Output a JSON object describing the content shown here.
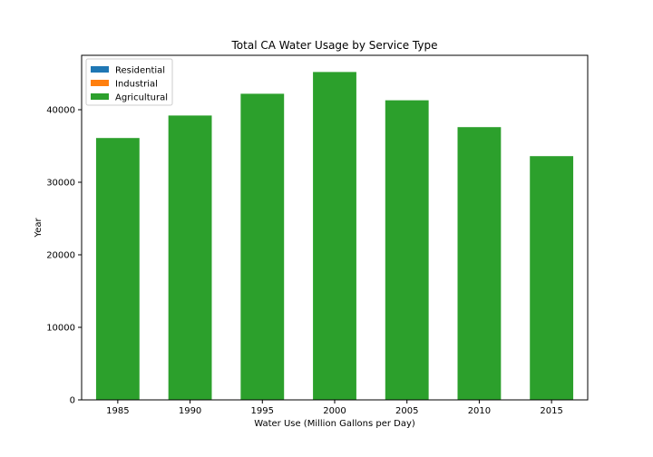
{
  "chart_data": {
    "type": "bar",
    "title": "Total CA Water Usage by Service Type",
    "xlabel": "Water Use (Million Gallons per Day)",
    "ylabel": "Year",
    "categories": [
      "1985",
      "1990",
      "1995",
      "2000",
      "2005",
      "2010",
      "2015"
    ],
    "ylim": [
      0,
      47500
    ],
    "yticks": [
      0,
      10000,
      20000,
      30000,
      40000
    ],
    "stacked": true,
    "grid": false,
    "legend_position": "top-left",
    "series": [
      {
        "name": "Residential",
        "color": "#1f77b4",
        "values": [
          0,
          0,
          0,
          0,
          0,
          0,
          0
        ]
      },
      {
        "name": "Industrial",
        "color": "#ff7f0e",
        "values": [
          0,
          0,
          0,
          0,
          0,
          0,
          0
        ]
      },
      {
        "name": "Agricultural",
        "color": "#2ca02c",
        "values": [
          36100,
          39200,
          42200,
          45200,
          41300,
          37600,
          33600
        ]
      }
    ]
  }
}
